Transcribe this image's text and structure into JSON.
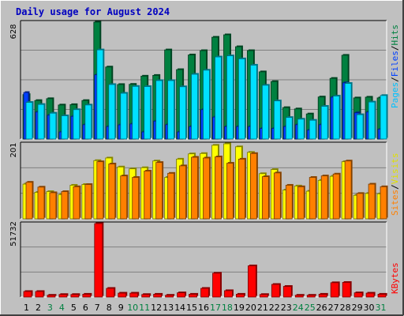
{
  "title": "Daily usage for August 2024",
  "colors": {
    "background": "#c0c0c0",
    "hits": "#008040",
    "files": "#00e0ff",
    "pages": "#0040ff",
    "visits": "#ffff00",
    "sites": "#ff8000",
    "kbytes": "#ff0000",
    "title": "#0000c0",
    "weekday": "#000000",
    "weekend": "#008040"
  },
  "chart_data": [
    {
      "type": "bar",
      "panel": "hits-files-pages",
      "scale_label": "628",
      "ylim": [
        0,
        628
      ],
      "x": [
        1,
        2,
        3,
        4,
        5,
        6,
        7,
        8,
        9,
        10,
        11,
        12,
        13,
        14,
        15,
        16,
        17,
        18,
        19,
        20,
        21,
        22,
        23,
        24,
        25,
        26,
        27,
        28,
        29,
        30,
        31
      ],
      "series": [
        {
          "name": "Hits",
          "values": [
            239,
            207,
            217,
            183,
            185,
            207,
            628,
            387,
            293,
            294,
            338,
            342,
            479,
            373,
            452,
            475,
            547,
            560,
            496,
            475,
            361,
            309,
            169,
            162,
            135,
            226,
            326,
            450,
            221,
            225,
            221
          ]
        },
        {
          "name": "Files",
          "values": [
            197,
            186,
            139,
            125,
            158,
            183,
            479,
            293,
            246,
            283,
            282,
            314,
            314,
            281,
            348,
            370,
            441,
            447,
            431,
            397,
            289,
            205,
            116,
            107,
            101,
            176,
            231,
            299,
            131,
            199,
            234
          ]
        },
        {
          "name": "Pages",
          "values": [
            250,
            145,
            128,
            38,
            122,
            77,
            345,
            67,
            76,
            81,
            38,
            96,
            77,
            38,
            67,
            158,
            118,
            67,
            67,
            67,
            57,
            57,
            67,
            77,
            48,
            77,
            225,
            302,
            141,
            145,
            53
          ]
        }
      ]
    },
    {
      "type": "bar",
      "panel": "visits-sites",
      "scale_label": "201",
      "ylim": [
        0,
        201
      ],
      "x": [
        1,
        2,
        3,
        4,
        5,
        6,
        7,
        8,
        9,
        10,
        11,
        12,
        13,
        14,
        15,
        16,
        17,
        18,
        19,
        20,
        21,
        22,
        23,
        24,
        25,
        26,
        27,
        28,
        29,
        30,
        31
      ],
      "series": [
        {
          "name": "Visits",
          "values": [
            93,
            71,
            73,
            65,
            90,
            92,
            156,
            163,
            139,
            134,
            137,
            155,
            111,
            160,
            174,
            175,
            197,
            201,
            193,
            178,
            121,
            132,
            77,
            88,
            74,
            103,
            114,
            153,
            63,
            68,
            67
          ]
        },
        {
          "name": "Sites",
          "values": [
            98,
            85,
            70,
            73,
            86,
            92,
            153,
            147,
            115,
            111,
            128,
            151,
            122,
            142,
            165,
            163,
            166,
            149,
            160,
            175,
            113,
            123,
            90,
            86,
            111,
            115,
            120,
            155,
            68,
            93,
            86
          ]
        }
      ]
    },
    {
      "type": "bar",
      "panel": "kbytes",
      "scale_label": "51732",
      "ylim": [
        0,
        51732
      ],
      "x": [
        1,
        2,
        3,
        4,
        5,
        6,
        7,
        8,
        9,
        10,
        11,
        12,
        13,
        14,
        15,
        16,
        17,
        18,
        19,
        20,
        21,
        22,
        23,
        24,
        25,
        26,
        27,
        28,
        29,
        30,
        31
      ],
      "series": [
        {
          "name": "KBytes",
          "values": [
            3919,
            3919,
            1273,
            1804,
            1804,
            2000,
            51732,
            6120,
            2765,
            2765,
            1804,
            2000,
            1273,
            3000,
            2000,
            6120,
            16800,
            4500,
            2000,
            22000,
            1804,
            8900,
            7500,
            1273,
            1273,
            2000,
            10100,
            10300,
            3000,
            2765,
            2000
          ]
        }
      ]
    }
  ],
  "days": [
    "1",
    "2",
    "3",
    "4",
    "5",
    "6",
    "7",
    "8",
    "9",
    "10",
    "11",
    "12",
    "13",
    "14",
    "15",
    "16",
    "17",
    "18",
    "19",
    "20",
    "21",
    "22",
    "23",
    "24",
    "25",
    "26",
    "27",
    "28",
    "29",
    "30",
    "31"
  ],
  "weekend_days": [
    3,
    4,
    10,
    11,
    17,
    18,
    24,
    25,
    31
  ],
  "legends": {
    "top": [
      {
        "label": "Pages",
        "color": "#00c0ff"
      },
      {
        "label": "/",
        "color": "#000000"
      },
      {
        "label": "Files",
        "color": "#0040ff"
      },
      {
        "label": "/",
        "color": "#000000"
      },
      {
        "label": "Hits",
        "color": "#008040"
      }
    ],
    "middle": [
      {
        "label": "Sites",
        "color": "#ff8000"
      },
      {
        "label": "/",
        "color": "#000000"
      },
      {
        "label": "Visits",
        "color": "#e0e000"
      }
    ],
    "bottom": [
      {
        "label": "KBytes",
        "color": "#ff0000"
      }
    ]
  }
}
